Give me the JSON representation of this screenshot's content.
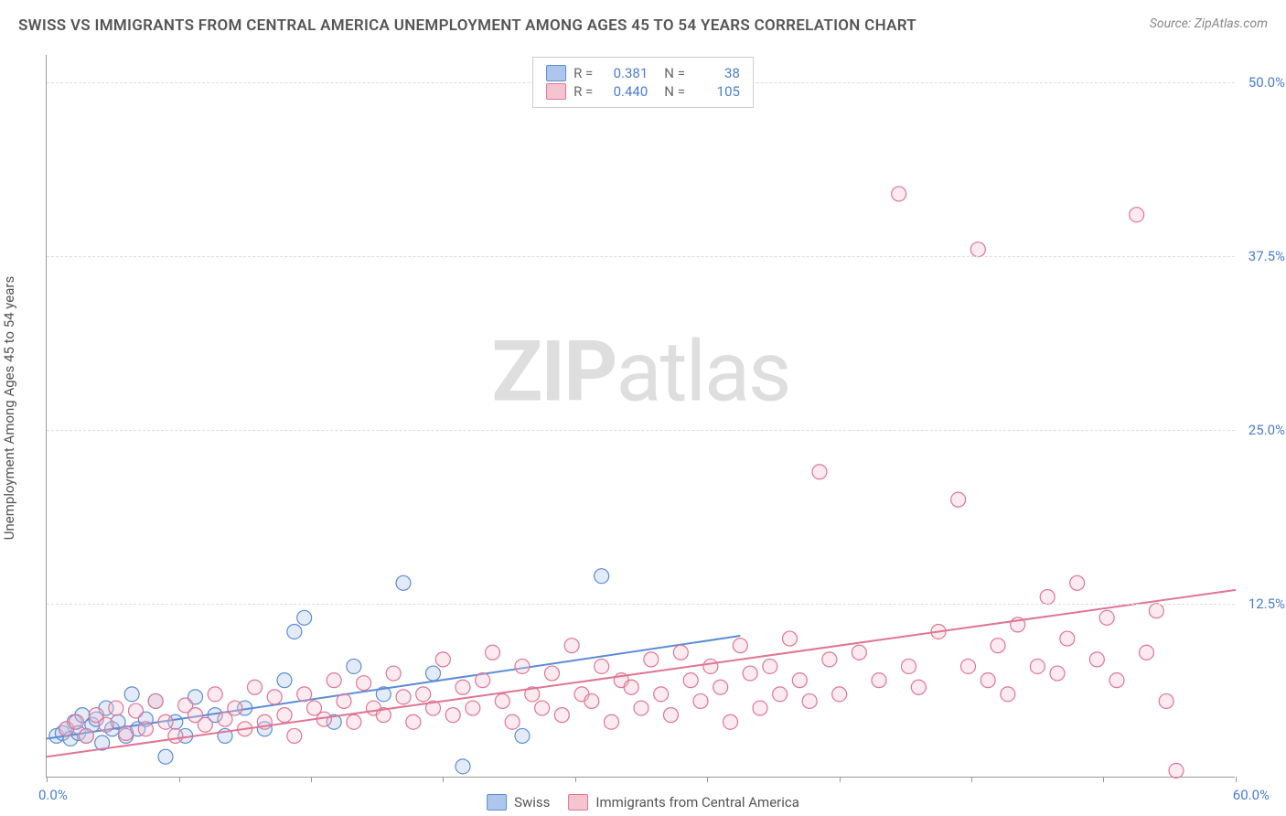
{
  "title": "SWISS VS IMMIGRANTS FROM CENTRAL AMERICA UNEMPLOYMENT AMONG AGES 45 TO 54 YEARS CORRELATION CHART",
  "source": "Source: ZipAtlas.com",
  "watermark_bold": "ZIP",
  "watermark_rest": "atlas",
  "ylabel": "Unemployment Among Ages 45 to 54 years",
  "chart": {
    "type": "scatter",
    "xlim": [
      0,
      60
    ],
    "ylim": [
      0,
      52
    ],
    "x_ticks": [
      0,
      6.67,
      13.33,
      20,
      26.67,
      33.33,
      40,
      46.67,
      53.33,
      60
    ],
    "x_tick_labels_shown": {
      "0": "0.0%",
      "60": "60.0%"
    },
    "y_gridlines": [
      12.5,
      25.0,
      37.5,
      50.0
    ],
    "y_tick_labels": [
      "12.5%",
      "25.0%",
      "37.5%",
      "50.0%"
    ],
    "background_color": "#ffffff",
    "grid_color": "#dddddd",
    "axis_color": "#999999",
    "label_color": "#4a7dd4",
    "marker_radius": 8,
    "marker_opacity": 0.35,
    "line_width": 2,
    "series": [
      {
        "name": "Swiss",
        "color": "#7aa4e0",
        "fill": "#aec6ec",
        "stroke": "#5b8dd6",
        "stats": {
          "R": "0.381",
          "N": "38"
        },
        "trend": {
          "x1": 0,
          "y1": 2.8,
          "x2": 35,
          "y2": 10.2
        },
        "points": [
          [
            0.5,
            3.0
          ],
          [
            0.8,
            3.2
          ],
          [
            1.0,
            3.5
          ],
          [
            1.2,
            2.8
          ],
          [
            1.4,
            4.0
          ],
          [
            1.6,
            3.2
          ],
          [
            1.8,
            4.5
          ],
          [
            2.0,
            3.0
          ],
          [
            2.3,
            3.8
          ],
          [
            2.5,
            4.2
          ],
          [
            2.8,
            2.5
          ],
          [
            3.0,
            5.0
          ],
          [
            3.3,
            3.5
          ],
          [
            3.6,
            4.0
          ],
          [
            4.0,
            3.0
          ],
          [
            4.3,
            6.0
          ],
          [
            4.6,
            3.5
          ],
          [
            5.0,
            4.2
          ],
          [
            5.5,
            5.5
          ],
          [
            6.0,
            1.5
          ],
          [
            6.5,
            4.0
          ],
          [
            7.0,
            3.0
          ],
          [
            7.5,
            5.8
          ],
          [
            8.5,
            4.5
          ],
          [
            9.0,
            3.0
          ],
          [
            10.0,
            5.0
          ],
          [
            11.0,
            3.5
          ],
          [
            12.0,
            7.0
          ],
          [
            12.5,
            10.5
          ],
          [
            13.0,
            11.5
          ],
          [
            14.5,
            4.0
          ],
          [
            15.5,
            8.0
          ],
          [
            17.0,
            6.0
          ],
          [
            18.0,
            14.0
          ],
          [
            19.5,
            7.5
          ],
          [
            21.0,
            0.8
          ],
          [
            24.0,
            3.0
          ],
          [
            28.0,
            14.5
          ]
        ]
      },
      {
        "name": "Immigrants from Central America",
        "color": "#e89ab0",
        "fill": "#f4c4d1",
        "stroke": "#e07595",
        "stats": {
          "R": "0.440",
          "N": "105"
        },
        "trend": {
          "x1": 0,
          "y1": 1.5,
          "x2": 60,
          "y2": 13.5
        },
        "points": [
          [
            1.0,
            3.5
          ],
          [
            1.5,
            4.0
          ],
          [
            2.0,
            3.0
          ],
          [
            2.5,
            4.5
          ],
          [
            3.0,
            3.8
          ],
          [
            3.5,
            5.0
          ],
          [
            4.0,
            3.2
          ],
          [
            4.5,
            4.8
          ],
          [
            5.0,
            3.5
          ],
          [
            5.5,
            5.5
          ],
          [
            6.0,
            4.0
          ],
          [
            6.5,
            3.0
          ],
          [
            7.0,
            5.2
          ],
          [
            7.5,
            4.5
          ],
          [
            8.0,
            3.8
          ],
          [
            8.5,
            6.0
          ],
          [
            9.0,
            4.2
          ],
          [
            9.5,
            5.0
          ],
          [
            10.0,
            3.5
          ],
          [
            10.5,
            6.5
          ],
          [
            11.0,
            4.0
          ],
          [
            11.5,
            5.8
          ],
          [
            12.0,
            4.5
          ],
          [
            12.5,
            3.0
          ],
          [
            13.0,
            6.0
          ],
          [
            13.5,
            5.0
          ],
          [
            14.0,
            4.2
          ],
          [
            14.5,
            7.0
          ],
          [
            15.0,
            5.5
          ],
          [
            15.5,
            4.0
          ],
          [
            16.0,
            6.8
          ],
          [
            16.5,
            5.0
          ],
          [
            17.0,
            4.5
          ],
          [
            17.5,
            7.5
          ],
          [
            18.0,
            5.8
          ],
          [
            18.5,
            4.0
          ],
          [
            19.0,
            6.0
          ],
          [
            19.5,
            5.0
          ],
          [
            20.0,
            8.5
          ],
          [
            20.5,
            4.5
          ],
          [
            21.0,
            6.5
          ],
          [
            21.5,
            5.0
          ],
          [
            22.0,
            7.0
          ],
          [
            22.5,
            9.0
          ],
          [
            23.0,
            5.5
          ],
          [
            23.5,
            4.0
          ],
          [
            24.0,
            8.0
          ],
          [
            24.5,
            6.0
          ],
          [
            25.0,
            5.0
          ],
          [
            25.5,
            7.5
          ],
          [
            26.0,
            4.5
          ],
          [
            26.5,
            9.5
          ],
          [
            27.0,
            6.0
          ],
          [
            27.5,
            5.5
          ],
          [
            28.0,
            8.0
          ],
          [
            28.5,
            4.0
          ],
          [
            29.0,
            7.0
          ],
          [
            29.5,
            6.5
          ],
          [
            30.0,
            5.0
          ],
          [
            30.5,
            8.5
          ],
          [
            31.0,
            6.0
          ],
          [
            31.5,
            4.5
          ],
          [
            32.0,
            9.0
          ],
          [
            32.5,
            7.0
          ],
          [
            33.0,
            5.5
          ],
          [
            33.5,
            8.0
          ],
          [
            34.0,
            6.5
          ],
          [
            34.5,
            4.0
          ],
          [
            35.0,
            9.5
          ],
          [
            35.5,
            7.5
          ],
          [
            36.0,
            5.0
          ],
          [
            36.5,
            8.0
          ],
          [
            37.0,
            6.0
          ],
          [
            37.5,
            10.0
          ],
          [
            38.0,
            7.0
          ],
          [
            38.5,
            5.5
          ],
          [
            39.0,
            22.0
          ],
          [
            39.5,
            8.5
          ],
          [
            40.0,
            6.0
          ],
          [
            41.0,
            9.0
          ],
          [
            42.0,
            7.0
          ],
          [
            43.0,
            42.0
          ],
          [
            43.5,
            8.0
          ],
          [
            44.0,
            6.5
          ],
          [
            45.0,
            10.5
          ],
          [
            46.0,
            20.0
          ],
          [
            46.5,
            8.0
          ],
          [
            47.0,
            38.0
          ],
          [
            47.5,
            7.0
          ],
          [
            48.0,
            9.5
          ],
          [
            48.5,
            6.0
          ],
          [
            49.0,
            11.0
          ],
          [
            50.0,
            8.0
          ],
          [
            50.5,
            13.0
          ],
          [
            51.0,
            7.5
          ],
          [
            51.5,
            10.0
          ],
          [
            52.0,
            14.0
          ],
          [
            53.0,
            8.5
          ],
          [
            53.5,
            11.5
          ],
          [
            54.0,
            7.0
          ],
          [
            55.0,
            40.5
          ],
          [
            55.5,
            9.0
          ],
          [
            56.0,
            12.0
          ],
          [
            56.5,
            5.5
          ],
          [
            57.0,
            0.5
          ]
        ]
      }
    ]
  },
  "legend_top": {
    "r_label": "R =",
    "n_label": "N ="
  },
  "legend_bottom": [
    {
      "label": "Swiss",
      "fill": "#aec6ec",
      "stroke": "#5b8dd6"
    },
    {
      "label": "Immigrants from Central America",
      "fill": "#f4c4d1",
      "stroke": "#e07595"
    }
  ]
}
